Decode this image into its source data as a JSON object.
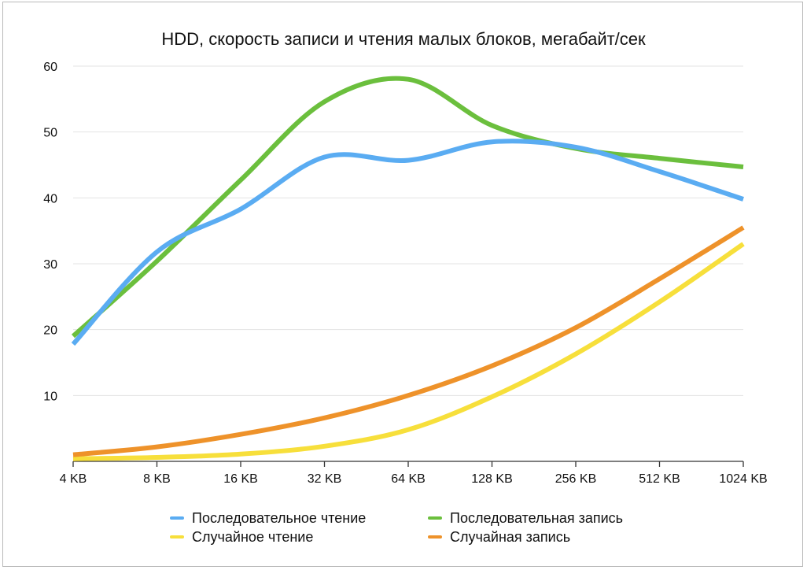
{
  "chart_data": {
    "type": "line",
    "title": "HDD, скорость записи и чтения малых блоков, мегабайт/сек",
    "xlabel": "",
    "ylabel": "",
    "categories": [
      "4 KB",
      "8 KB",
      "16 KB",
      "32 KB",
      "64 KB",
      "128 KB",
      "256 KB",
      "512 KB",
      "1024 KB"
    ],
    "ylim": [
      0,
      60
    ],
    "yticks": [
      10,
      20,
      30,
      40,
      50,
      60
    ],
    "grid": true,
    "legend_position": "bottom",
    "series": [
      {
        "name": "Последовательное чтение",
        "color": "#5aacf2",
        "values": [
          17.8,
          31.8,
          38.3,
          46.2,
          45.7,
          48.5,
          47.7,
          44.0,
          39.8
        ]
      },
      {
        "name": "Последовательная запись",
        "color": "#6bbf3d",
        "values": [
          19.0,
          30.4,
          42.7,
          54.6,
          58.0,
          51.0,
          47.5,
          46.0,
          44.7
        ]
      },
      {
        "name": "Случайное чтение",
        "color": "#f7df3b",
        "values": [
          0.4,
          0.6,
          1.1,
          2.3,
          4.8,
          9.8,
          16.3,
          24.2,
          33.0
        ]
      },
      {
        "name": "Случайная запись",
        "color": "#ee922a",
        "values": [
          1.0,
          2.2,
          4.1,
          6.6,
          10.0,
          14.5,
          20.3,
          27.7,
          35.5
        ]
      }
    ]
  }
}
